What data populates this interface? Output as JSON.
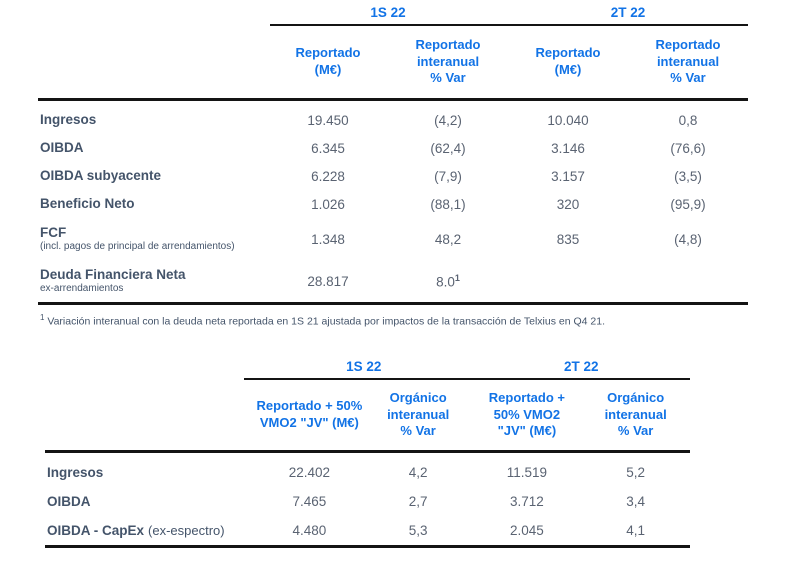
{
  "colors": {
    "accent_blue": "#1273E6",
    "label_dark": "#44546A",
    "value_gray": "#5A6372",
    "rule_black": "#141414"
  },
  "table1": {
    "groups": [
      "1S 22",
      "2T 22"
    ],
    "columns": [
      "Reportado\n(M€)",
      "Reportado\ninteranual\n% Var",
      "Reportado\n(M€)",
      "Reportado\ninteranual\n% Var"
    ],
    "rows": [
      {
        "label": "Ingresos",
        "sublabel": "",
        "values": [
          "19.450",
          "(4,2)",
          "10.040",
          "0,8"
        ]
      },
      {
        "label": "OIBDA",
        "sublabel": "",
        "values": [
          "6.345",
          "(62,4)",
          "3.146",
          "(76,6)"
        ]
      },
      {
        "label": "OIBDA subyacente",
        "sublabel": "",
        "values": [
          "6.228",
          "(7,9)",
          "3.157",
          "(3,5)"
        ]
      },
      {
        "label": "Beneficio Neto",
        "sublabel": "",
        "values": [
          "1.026",
          "(88,1)",
          "320",
          "(95,9)"
        ]
      },
      {
        "label": "FCF",
        "sublabel": "(incl. pagos de principal de arrendamientos)",
        "values": [
          "1.348",
          "48,2",
          "835",
          "(4,8)"
        ]
      },
      {
        "label": "Deuda Financiera Neta",
        "sublabel": "ex-arrendamientos",
        "values": [
          "28.817",
          "8.0",
          "",
          ""
        ],
        "var_superscript": "1"
      }
    ],
    "footnote": {
      "sup": "1",
      "text": " Variación interanual con la deuda neta reportada en 1S 21 ajustada por impactos de la transacción de Telxius en Q4 21."
    }
  },
  "table2": {
    "groups": [
      "1S 22",
      "2T 22"
    ],
    "columns": [
      "Reportado + 50%\nVMO2 \"JV\" (M€)",
      "Orgánico\ninteranual\n% Var",
      "Reportado +\n50% VMO2\n\"JV\" (M€)",
      "Orgánico\ninteranual\n% Var"
    ],
    "rows": [
      {
        "label": "Ingresos",
        "suffix": "",
        "values": [
          "22.402",
          "4,2",
          "11.519",
          "5,2"
        ]
      },
      {
        "label": "OIBDA",
        "suffix": "",
        "values": [
          "7.465",
          "2,7",
          "3.712",
          "3,4"
        ]
      },
      {
        "label": "OIBDA - CapEx",
        "suffix": "(ex-espectro)",
        "values": [
          "4.480",
          "5,3",
          "2.045",
          "4,1"
        ]
      }
    ]
  }
}
